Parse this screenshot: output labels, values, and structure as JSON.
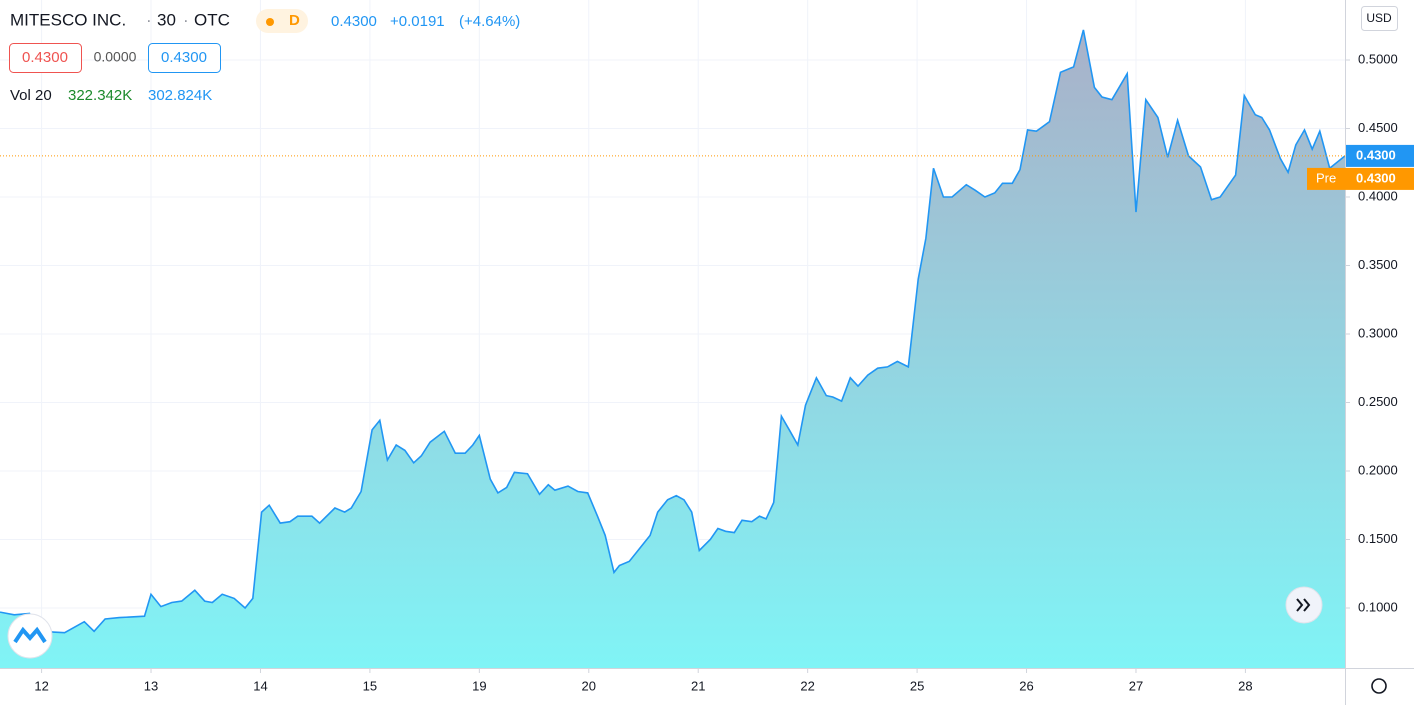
{
  "chart_data": {
    "type": "area",
    "header": {
      "symbol": "MITESCO INC.",
      "interval": "30",
      "exchange": "OTC",
      "session": "D",
      "last": "0.4300",
      "change": "+0.0191",
      "change_pct": "(+4.64%)"
    },
    "boxes": {
      "bid": "0.4300",
      "spread": "0.0000",
      "ask": "0.4300"
    },
    "volume_legend": {
      "name": "Vol 20",
      "volume": "322.342K",
      "ma": "302.824K"
    },
    "currency": "USD",
    "last_price": {
      "value": 0.43,
      "label": "0.4300"
    },
    "pre_market": {
      "name": "Pre",
      "label": "0.4300"
    },
    "series": [
      {
        "name": "MITESCO INC.",
        "color": "#2196f3",
        "x": [
          -0.38,
          -0.25,
          -0.11,
          -0.02,
          0.21,
          0.39,
          0.48,
          0.58,
          0.71,
          0.94,
          1.0,
          1.09,
          1.19,
          1.28,
          1.4,
          1.49,
          1.56,
          1.65,
          1.76,
          1.86,
          1.93,
          2.01,
          2.08,
          2.18,
          2.27,
          2.34,
          2.47,
          2.54,
          2.68,
          2.77,
          2.83,
          2.92,
          3.02,
          3.09,
          3.16,
          3.24,
          3.32,
          3.4,
          3.47,
          3.55,
          3.68,
          3.78,
          3.87,
          3.94,
          4.0,
          4.1,
          4.17,
          4.25,
          4.32,
          4.44,
          4.55,
          4.63,
          4.69,
          4.81,
          4.9,
          4.99,
          5.08,
          5.15,
          5.23,
          5.28,
          5.37,
          5.46,
          5.56,
          5.63,
          5.72,
          5.8,
          5.87,
          5.94,
          6.01,
          6.11,
          6.18,
          6.25,
          6.33,
          6.4,
          6.49,
          6.56,
          6.62,
          6.69,
          6.76,
          6.84,
          6.91,
          6.98,
          7.08,
          7.17,
          7.23,
          7.31,
          7.39,
          7.46,
          7.55,
          7.64,
          7.73,
          7.82,
          7.92,
          8.01,
          8.08,
          8.15,
          8.24,
          8.32,
          8.45,
          8.53,
          8.62,
          8.71,
          8.78,
          8.87,
          8.94,
          9.01,
          9.09,
          9.21,
          9.31,
          9.43,
          9.52,
          9.62,
          9.69,
          9.78,
          9.92,
          10.0,
          10.09,
          10.2,
          10.29,
          10.38,
          10.48,
          10.59,
          10.69,
          10.77,
          10.91,
          10.99,
          11.09,
          11.15,
          11.22,
          11.32,
          11.39,
          11.46,
          11.54,
          11.61,
          11.68,
          11.77,
          11.91
        ],
        "values": [
          0.097,
          0.095,
          0.096,
          0.083,
          0.082,
          0.09,
          0.083,
          0.092,
          0.093,
          0.094,
          0.11,
          0.101,
          0.104,
          0.105,
          0.113,
          0.105,
          0.104,
          0.11,
          0.107,
          0.1,
          0.107,
          0.17,
          0.175,
          0.162,
          0.163,
          0.167,
          0.167,
          0.162,
          0.173,
          0.17,
          0.173,
          0.185,
          0.23,
          0.237,
          0.208,
          0.219,
          0.215,
          0.206,
          0.211,
          0.221,
          0.229,
          0.213,
          0.213,
          0.219,
          0.226,
          0.194,
          0.184,
          0.188,
          0.199,
          0.198,
          0.183,
          0.19,
          0.186,
          0.189,
          0.185,
          0.184,
          0.167,
          0.153,
          0.126,
          0.131,
          0.134,
          0.143,
          0.153,
          0.17,
          0.179,
          0.182,
          0.179,
          0.17,
          0.142,
          0.15,
          0.158,
          0.156,
          0.155,
          0.164,
          0.163,
          0.167,
          0.165,
          0.177,
          0.24,
          0.229,
          0.219,
          0.248,
          0.268,
          0.255,
          0.254,
          0.251,
          0.268,
          0.262,
          0.27,
          0.275,
          0.276,
          0.28,
          0.276,
          0.34,
          0.37,
          0.421,
          0.4,
          0.4,
          0.409,
          0.405,
          0.4,
          0.403,
          0.41,
          0.41,
          0.42,
          0.449,
          0.448,
          0.455,
          0.491,
          0.495,
          0.522,
          0.48,
          0.473,
          0.471,
          0.49,
          0.389,
          0.471,
          0.458,
          0.429,
          0.456,
          0.43,
          0.422,
          0.398,
          0.4,
          0.416,
          0.474,
          0.46,
          0.458,
          0.449,
          0.428,
          0.418,
          0.438,
          0.449,
          0.435,
          0.448,
          0.421,
          0.43
        ]
      }
    ],
    "xlim": [
      -0.38,
      11.91
    ],
    "xticks": [
      {
        "value": 0,
        "label": "12"
      },
      {
        "value": 1,
        "label": "13"
      },
      {
        "value": 2,
        "label": "14"
      },
      {
        "value": 3,
        "label": "15"
      },
      {
        "value": 4,
        "label": "19"
      },
      {
        "value": 5,
        "label": "20"
      },
      {
        "value": 6,
        "label": "21"
      },
      {
        "value": 7,
        "label": "22"
      },
      {
        "value": 8,
        "label": "25"
      },
      {
        "value": 9,
        "label": "26"
      },
      {
        "value": 10,
        "label": "27"
      },
      {
        "value": 11,
        "label": "28"
      }
    ],
    "ylim": [
      0.0562,
      0.5438
    ],
    "yticks": [
      {
        "value": 0.1,
        "label": "0.1000"
      },
      {
        "value": 0.15,
        "label": "0.1500"
      },
      {
        "value": 0.2,
        "label": "0.2000"
      },
      {
        "value": 0.25,
        "label": "0.2500"
      },
      {
        "value": 0.3,
        "label": "0.3000"
      },
      {
        "value": 0.35,
        "label": "0.3500"
      },
      {
        "value": 0.4,
        "label": "0.4000"
      },
      {
        "value": 0.45,
        "label": "0.4500"
      },
      {
        "value": 0.5,
        "label": "0.5000"
      }
    ],
    "grid": true
  }
}
